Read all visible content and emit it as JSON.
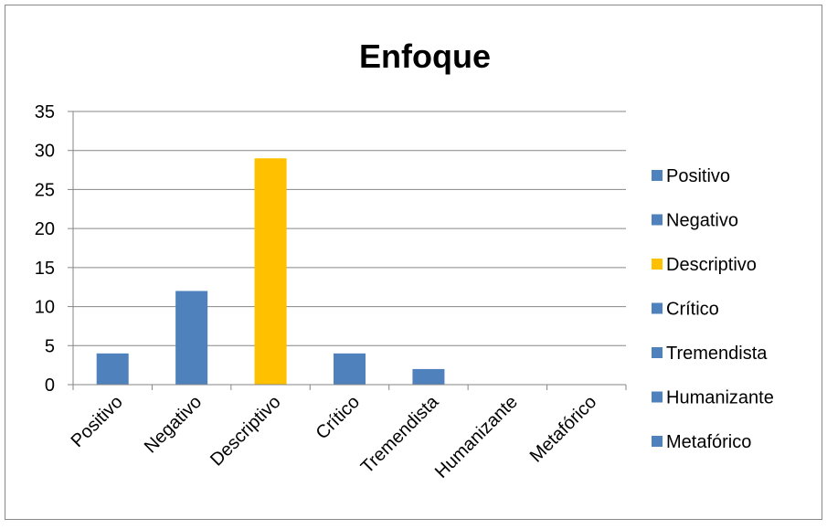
{
  "chart_data": {
    "type": "bar",
    "title": "Enfoque",
    "xlabel": "",
    "ylabel": "",
    "categories": [
      "Positivo",
      "Negativo",
      "Descriptivo",
      "Crítico",
      "Tremendista",
      "Humanizante",
      "Metafórico"
    ],
    "values": [
      4,
      12,
      29,
      4,
      2,
      0,
      0
    ],
    "colors": [
      "#4F81BD",
      "#4F81BD",
      "#FFC000",
      "#4F81BD",
      "#4F81BD",
      "#4F81BD",
      "#4F81BD"
    ],
    "ylim": [
      0,
      35
    ],
    "yticks": [
      "0",
      "5",
      "10",
      "15",
      "20",
      "25",
      "30",
      "35"
    ],
    "grid": true,
    "legend_position": "right",
    "legend": [
      {
        "label": "Positivo",
        "color": "#4F81BD"
      },
      {
        "label": "Negativo",
        "color": "#4F81BD"
      },
      {
        "label": "Descriptivo",
        "color": "#FFC000"
      },
      {
        "label": "Crítico",
        "color": "#4F81BD"
      },
      {
        "label": "Tremendista",
        "color": "#4F81BD"
      },
      {
        "label": "Humanizante",
        "color": "#4F81BD"
      },
      {
        "label": "Metafórico",
        "color": "#4F81BD"
      }
    ]
  }
}
